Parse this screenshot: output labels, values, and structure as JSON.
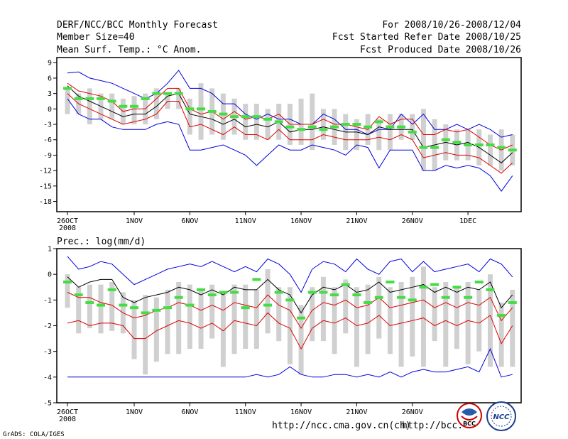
{
  "header": {
    "title": "DERF/NCC/BCC Monthly Forecast",
    "member_size": "Member Size=40",
    "variable": "Mean Surf. Temp.: °C Anom.",
    "period": "For 2008/10/26-2008/12/04",
    "started": "Fcst Started Refer Date 2008/10/25",
    "produced": "Fcst Produced Date 2008/10/26"
  },
  "footer": {
    "grads": "GrADS: COLA/IGES",
    "url1": "http://ncc.cma.gov.cn(ch)",
    "url2": "http://bcc.",
    "logo_bcc": "BCC",
    "logo_ncc": "NCC"
  },
  "colors": {
    "envelope": "#0000dd",
    "spread": "#dd0000",
    "mean": "#000000",
    "box": "#d0d0d0",
    "marker": "#44dd44"
  },
  "chart_data": [
    {
      "type": "line",
      "title": "Mean Surf. Temp.: °C Anom.",
      "ylim": [
        -20,
        10
      ],
      "yticks": [
        9,
        6,
        3,
        0,
        -3,
        -6,
        -9,
        -12,
        -15,
        -18
      ],
      "xtick_index": [
        0,
        6,
        11,
        16,
        21,
        26,
        31,
        36
      ],
      "xtick_labels": [
        "26OCT",
        "1NOV",
        "6NOV",
        "11NOV",
        "16NOV",
        "21NOV",
        "26NOV",
        "1DEC"
      ],
      "xtick_sublabel": "2008",
      "max": [
        7,
        7.2,
        6,
        5.5,
        5,
        4,
        3,
        2,
        3,
        5,
        7.5,
        4,
        4,
        3,
        1,
        1,
        -1,
        -2,
        -1,
        -2,
        -2,
        -3,
        -3,
        -1,
        -2,
        -4,
        -4,
        -5,
        -4,
        -4,
        -1,
        -3,
        -1,
        -4,
        -4,
        -3,
        -4,
        -3,
        -4,
        -5.5,
        -5
      ],
      "upper": [
        5,
        3.5,
        3,
        2.5,
        1.5,
        -0.5,
        0,
        0,
        2,
        4,
        4,
        0,
        -1,
        -0.5,
        -2,
        -0.5,
        -2,
        -1.5,
        -2,
        -1,
        -3,
        -3,
        -3,
        -2,
        -3,
        -3,
        -3.5,
        -4,
        -1.5,
        -3,
        -2,
        -2,
        -5,
        -5,
        -4,
        -4.5,
        -4,
        -5.5,
        -7,
        -8,
        -7
      ],
      "mean": [
        4.5,
        2.5,
        1.5,
        0.5,
        -0.5,
        -1.5,
        -1,
        -1,
        0.5,
        2.5,
        3,
        -1,
        -1.5,
        -2,
        -3,
        -2,
        -3.5,
        -3,
        -3.5,
        -2.5,
        -4.5,
        -4,
        -4,
        -3.5,
        -4,
        -4.5,
        -4.5,
        -5,
        -3.5,
        -4,
        -4,
        -4,
        -7.5,
        -7,
        -6.5,
        -7,
        -6.5,
        -7.5,
        -9,
        -10.5,
        -8.5
      ],
      "lower": [
        3,
        1,
        0,
        -1,
        -2,
        -3,
        -2.5,
        -2,
        -1,
        1.5,
        1.5,
        -3.5,
        -3,
        -4,
        -5,
        -3.5,
        -5,
        -5,
        -6,
        -4,
        -6,
        -6,
        -6,
        -5,
        -5.5,
        -6,
        -6,
        -6,
        -5.5,
        -6,
        -5,
        -6,
        -9.5,
        -9,
        -8.5,
        -9,
        -9,
        -9.5,
        -11,
        -12.5,
        -10.5
      ],
      "min": [
        2,
        -1,
        -2,
        -2,
        -3.5,
        -4,
        -4,
        -4,
        -3,
        -2.5,
        -3,
        -8,
        -8,
        -7.5,
        -7,
        -8,
        -9,
        -11,
        -9,
        -7,
        -8,
        -8,
        -7,
        -7.5,
        -8,
        -9,
        -7,
        -7.5,
        -11.5,
        -8,
        -8,
        -8,
        -12,
        -12,
        -11,
        -11.5,
        -11,
        -11.5,
        -13,
        -16,
        -13
      ],
      "box_high": [
        4,
        3,
        4,
        3,
        3,
        2,
        2.5,
        3,
        4,
        3,
        4,
        2,
        5,
        4,
        3,
        2,
        1,
        1,
        0,
        1,
        1,
        2,
        3,
        0,
        0,
        -1,
        -2,
        -1,
        -2,
        -1,
        -1,
        -1,
        0,
        -2,
        -3,
        -4,
        -4,
        -4,
        -5,
        -4,
        -5
      ],
      "box_low": [
        -1,
        -1,
        -3,
        -2,
        -2,
        -3,
        -3,
        -3,
        -2,
        0,
        0,
        -5,
        -6,
        -5,
        -6,
        -5,
        -6,
        -6,
        -6,
        -6,
        -7,
        -7,
        -8,
        -6,
        -7,
        -8,
        -8,
        -7,
        -8,
        -8,
        -6,
        -6,
        -12,
        -12,
        -10,
        -10,
        -10,
        -11,
        -11,
        -12,
        -11
      ],
      "marker": [
        4,
        2,
        2,
        2,
        1.5,
        0.5,
        0.5,
        2,
        3,
        3,
        3,
        0,
        0,
        -0.5,
        -1,
        -1.5,
        -1.5,
        -1.5,
        -2,
        -2.5,
        -3.5,
        -4,
        -3.5,
        -4,
        -3.5,
        -3,
        -3,
        -3.5,
        -2.5,
        -3.5,
        -3.5,
        -4.5,
        -7.5,
        -7.5,
        -6,
        -6.5,
        -7,
        -7,
        -7,
        -7.5,
        -8
      ]
    },
    {
      "type": "line",
      "title": "Prec.: log(mm/d)",
      "ylim": [
        -5,
        1
      ],
      "yticks": [
        1,
        0,
        -1,
        -2,
        -3,
        -4,
        -5
      ],
      "xtick_index": [
        0,
        6,
        11,
        16,
        21,
        26,
        31
      ],
      "xtick_labels": [
        "26OCT",
        "1NOV",
        "6NOV",
        "11NOV",
        "16NOV",
        "21NOV",
        "26NOV"
      ],
      "xtick_sublabel": "2008",
      "max": [
        0.7,
        0.2,
        0.3,
        0.5,
        0.4,
        0,
        -0.4,
        -0.2,
        0,
        0.2,
        0.3,
        0.4,
        0.3,
        0.5,
        0.3,
        0.1,
        0.3,
        0.1,
        0.6,
        0.4,
        0,
        -0.7,
        0.2,
        0.5,
        0.4,
        0.1,
        0.6,
        0.2,
        0,
        0.5,
        0.6,
        0.1,
        0.5,
        0.1,
        0.2,
        0.3,
        0.4,
        0.1,
        0.6,
        0.4,
        -0.1
      ],
      "mean": [
        -0.1,
        -0.5,
        -0.3,
        -0.2,
        -0.2,
        -0.9,
        -1.1,
        -0.9,
        -0.8,
        -0.7,
        -0.5,
        -0.6,
        -0.8,
        -0.6,
        -0.8,
        -0.5,
        -0.6,
        -0.6,
        -0.2,
        -0.6,
        -0.8,
        -1.5,
        -0.8,
        -0.5,
        -0.6,
        -0.4,
        -0.7,
        -0.6,
        -0.3,
        -0.7,
        -0.6,
        -0.5,
        -0.4,
        -0.7,
        -0.5,
        -0.7,
        -0.5,
        -0.6,
        -0.3,
        -1.3,
        -0.8
      ],
      "upper": [
        -0.7,
        -0.9,
        -0.9,
        -1.1,
        -1.2,
        -1.5,
        -1.7,
        -1.6,
        -1.4,
        -1.3,
        -1.1,
        -1.2,
        -1.4,
        -1.2,
        -1.4,
        -1.1,
        -1.2,
        -1.3,
        -0.8,
        -1.2,
        -1.4,
        -2.1,
        -1.4,
        -1.1,
        -1.2,
        -1,
        -1.3,
        -1.2,
        -0.9,
        -1.3,
        -1.2,
        -1.1,
        -1,
        -1.3,
        -1.1,
        -1.3,
        -1.1,
        -1.2,
        -0.9,
        -1.8,
        -1.3
      ],
      "lower": [
        -1.9,
        -1.8,
        -2,
        -1.9,
        -1.9,
        -2,
        -2.5,
        -2.5,
        -2.2,
        -2,
        -1.8,
        -1.9,
        -2.1,
        -1.9,
        -2.2,
        -1.8,
        -1.9,
        -2,
        -1.5,
        -1.9,
        -2.1,
        -2.9,
        -2.1,
        -1.8,
        -1.9,
        -1.7,
        -2,
        -1.9,
        -1.6,
        -2,
        -1.9,
        -1.8,
        -1.7,
        -2,
        -1.8,
        -2,
        -1.8,
        -1.9,
        -1.6,
        -2.7,
        -2
      ],
      "min": [
        -4,
        -4,
        -4,
        -4,
        -4,
        -4,
        -4,
        -4,
        -4,
        -4,
        -4,
        -4,
        -4,
        -4,
        -4,
        -4,
        -4,
        -3.9,
        -4,
        -3.9,
        -3.6,
        -3.9,
        -4,
        -4,
        -3.9,
        -3.9,
        -4,
        -3.9,
        -4,
        -3.8,
        -4,
        -3.8,
        -3.7,
        -3.8,
        -3.8,
        -3.7,
        -3.6,
        -3.8,
        -2.9,
        -4,
        -3.9
      ],
      "box_high": [
        0,
        -0.5,
        -0.4,
        -0.4,
        -0.3,
        -0.7,
        -1,
        -0.8,
        -0.9,
        -0.6,
        -0.3,
        -0.4,
        -0.6,
        -0.4,
        -0.7,
        -0.4,
        -0.4,
        -0.6,
        0.2,
        -0.5,
        -0.5,
        -1.2,
        -0.5,
        -0.1,
        -0.5,
        -0.2,
        -0.5,
        -0.4,
        -0.1,
        -0.5,
        -0.3,
        -0.1,
        0.3,
        -0.5,
        -0.3,
        -0.5,
        -0.3,
        -0.6,
        0,
        -1.1,
        -0.6
      ],
      "box_low": [
        -1.3,
        -2.3,
        -2.1,
        -2.3,
        -2.2,
        -2.3,
        -3.3,
        -3.9,
        -3.4,
        -3.1,
        -3.1,
        -2.9,
        -2.9,
        -2.5,
        -3.6,
        -3.1,
        -2.9,
        -2.9,
        -2.3,
        -2.6,
        -3.5,
        -3.9,
        -2.6,
        -2.6,
        -3.1,
        -2.3,
        -3.6,
        -3.1,
        -2.5,
        -3.1,
        -3.6,
        -3.2,
        -3.6,
        -2.6,
        -3.6,
        -2.9,
        -3.5,
        -3,
        -3.6,
        -3.6,
        -3.6
      ],
      "marker": [
        -0.3,
        -0.8,
        -1.1,
        -1.2,
        -0.6,
        -1.2,
        -1.3,
        -1.5,
        -1.4,
        -1.3,
        -0.9,
        -1.2,
        -0.6,
        -0.8,
        -0.7,
        -0.7,
        -1.3,
        -0.2,
        -1.2,
        -0.7,
        -1,
        -1.7,
        -0.7,
        -0.7,
        -0.8,
        -0.4,
        -0.8,
        -1.1,
        -0.9,
        -0.3,
        -0.9,
        -1,
        -0.5,
        -0.4,
        -0.9,
        -0.5,
        -0.9,
        -0.3,
        -0.6,
        -1.6,
        -1.1
      ]
    }
  ]
}
